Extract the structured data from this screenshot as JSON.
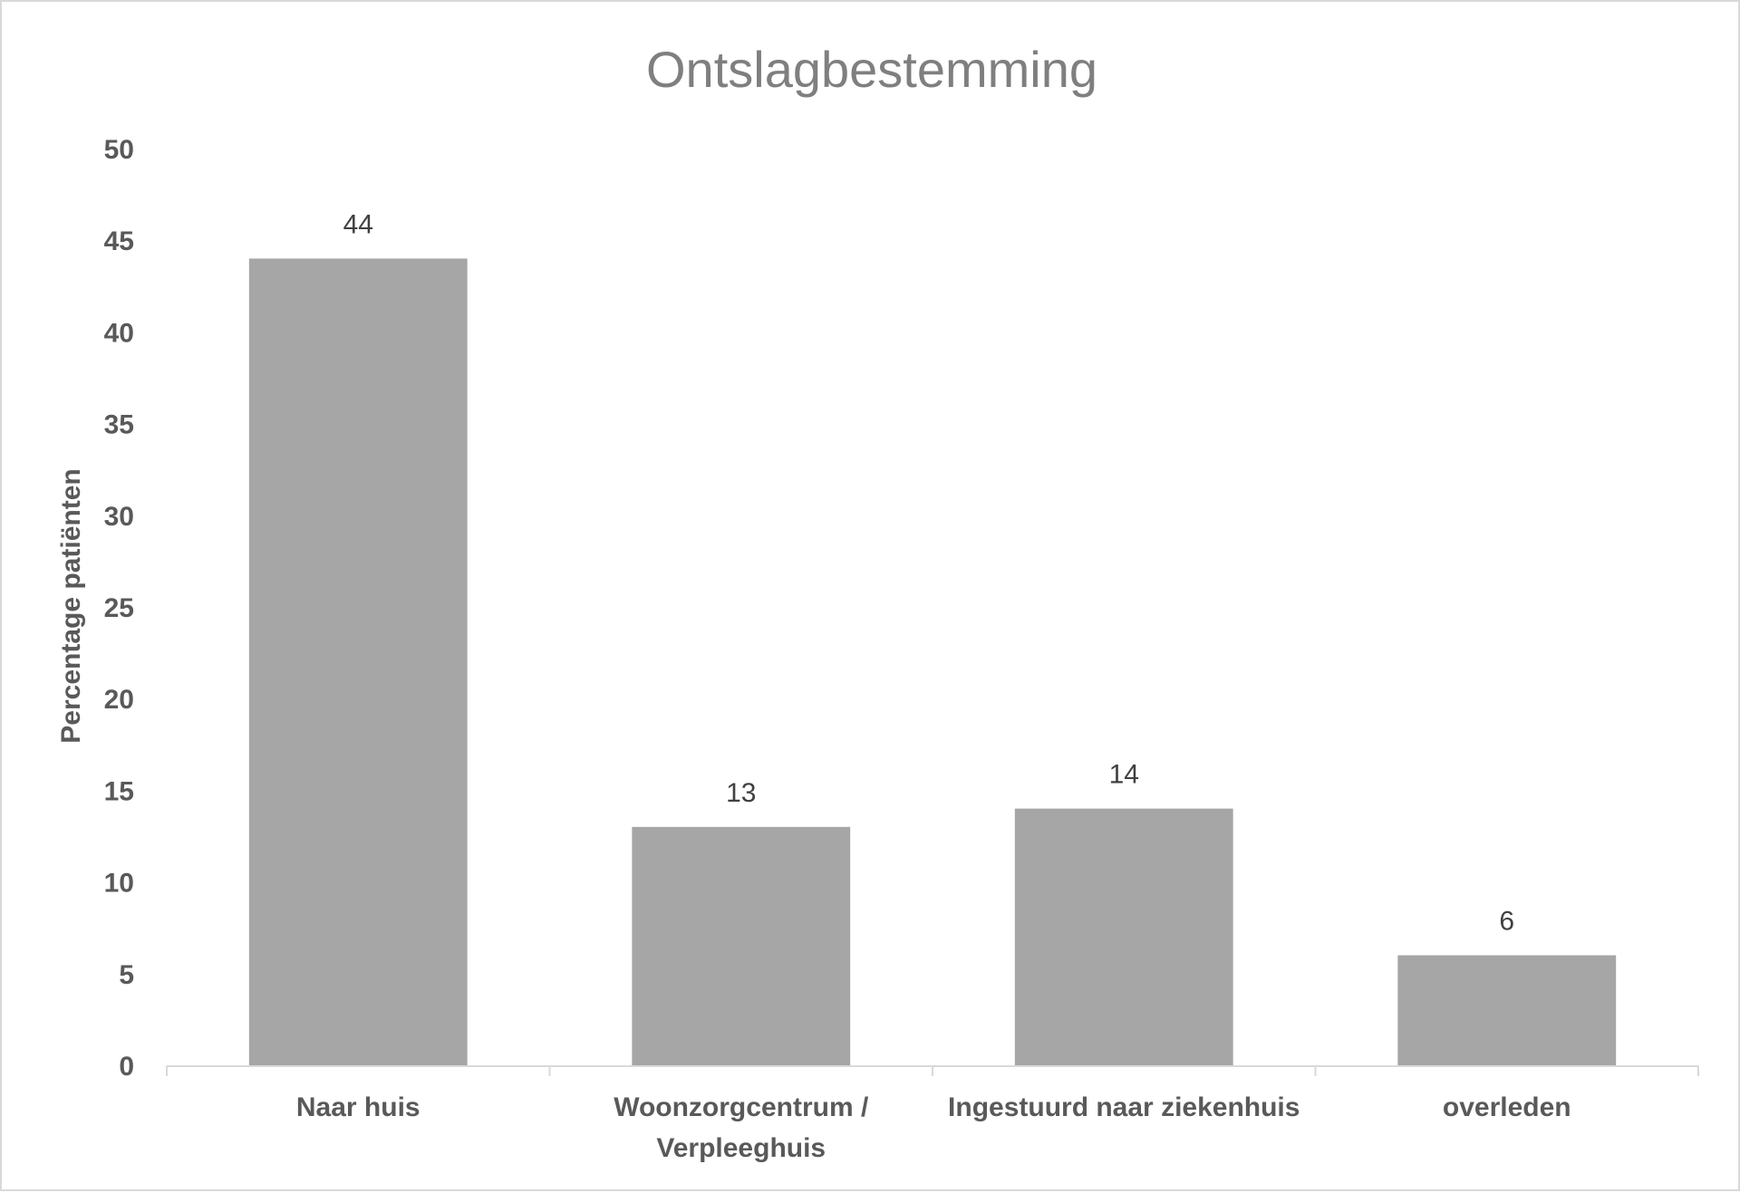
{
  "chart_data": {
    "type": "bar",
    "title": "Ontslagbestemming",
    "xlabel": "",
    "ylabel": "Percentage patiënten",
    "categories": [
      [
        "Naar huis"
      ],
      [
        "Woonzorgcentrum /",
        "Verpleeghuis"
      ],
      [
        "Ingestuurd naar ziekenhuis"
      ],
      [
        "overleden"
      ]
    ],
    "values": [
      44,
      13,
      14,
      6
    ],
    "data_labels": [
      "44",
      "13",
      "14",
      "6"
    ],
    "y_ticks": [
      0,
      5,
      10,
      15,
      20,
      25,
      30,
      35,
      40,
      45,
      50
    ],
    "ylim": [
      0,
      50
    ],
    "grid": false,
    "legend": "none",
    "bar_color": "#a6a6a6",
    "axis_color": "#d9d9d9"
  }
}
